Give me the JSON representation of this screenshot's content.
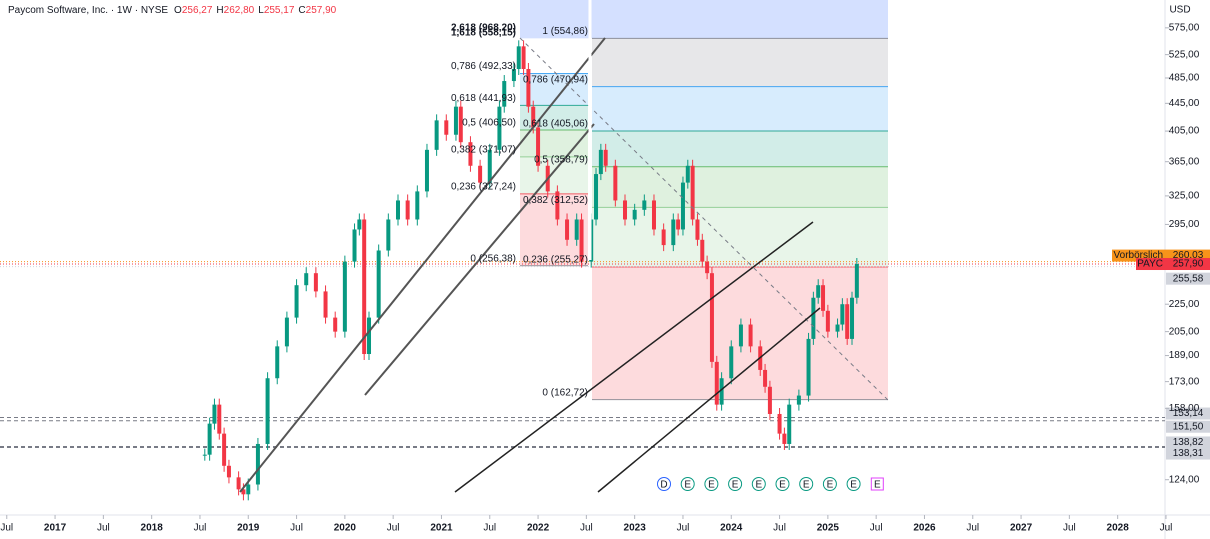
{
  "chart_data": {
    "type": "candlestick",
    "log_scale": true,
    "header": {
      "title": "Paycom Software, Inc. · 1W · NYSE",
      "ohlc": [
        {
          "key": "O",
          "value": 256.27,
          "value_label": "256,27"
        },
        {
          "key": "H",
          "value": 262.8,
          "value_label": "262,80"
        },
        {
          "key": "L",
          "value": 255.17,
          "value_label": "255,17"
        },
        {
          "key": "C",
          "value": 257.9,
          "value_label": "257,90"
        }
      ]
    },
    "currency": "USD",
    "up_color": "#089981",
    "down_color": "#f23645",
    "ylim": [
      110,
      632
    ],
    "yticks": [
      {
        "value": 575,
        "label": "575,00"
      },
      {
        "value": 525,
        "label": "525,00"
      },
      {
        "value": 485,
        "label": "485,00"
      },
      {
        "value": 445,
        "label": "445,00"
      },
      {
        "value": 405,
        "label": "405,00"
      },
      {
        "value": 365,
        "label": "365,00"
      },
      {
        "value": 325,
        "label": "325,00"
      },
      {
        "value": 295,
        "label": "295,00"
      },
      {
        "value": 225,
        "label": "225,00"
      },
      {
        "value": 205,
        "label": "205,00"
      },
      {
        "value": 189,
        "label": "189,00"
      },
      {
        "value": 173,
        "label": "173,00"
      },
      {
        "value": 158,
        "label": "158,00"
      },
      {
        "value": 124,
        "label": "124,00"
      }
    ],
    "xlim": [
      2016.43,
      2028.49
    ],
    "xticks": [
      {
        "value": 2016.5,
        "label": "Jul"
      },
      2017,
      {
        "value": 2017.5,
        "label": "Jul"
      },
      2018,
      {
        "value": 2018.5,
        "label": "Jul"
      },
      2019,
      {
        "value": 2019.5,
        "label": "Jul"
      },
      2020,
      {
        "value": 2020.5,
        "label": "Jul"
      },
      2021,
      {
        "value": 2021.5,
        "label": "Jul"
      },
      2022,
      {
        "value": 2022.5,
        "label": "Jul"
      },
      2023,
      {
        "value": 2023.5,
        "label": "Jul"
      },
      2024,
      {
        "value": 2024.5,
        "label": "Jul"
      },
      2025,
      {
        "value": 2025.5,
        "label": "Jul"
      },
      2026,
      {
        "value": 2026.5,
        "label": "Jul"
      },
      2027,
      {
        "value": 2027.5,
        "label": "Jul"
      },
      2028,
      {
        "value": 2028.5,
        "label": "Jul"
      }
    ],
    "x": [
      2018.55,
      2018.6,
      2018.65,
      2018.7,
      2018.75,
      2018.8,
      2018.9,
      2018.95,
      2019.0,
      2019.1,
      2019.2,
      2019.3,
      2019.4,
      2019.5,
      2019.6,
      2019.7,
      2019.8,
      2019.9,
      2020.0,
      2020.1,
      2020.15,
      2020.2,
      2020.25,
      2020.35,
      2020.45,
      2020.55,
      2020.65,
      2020.75,
      2020.85,
      2020.95,
      2021.05,
      2021.15,
      2021.2,
      2021.3,
      2021.4,
      2021.5,
      2021.6,
      2021.65,
      2021.75,
      2021.8,
      2021.85,
      2021.9,
      2021.95,
      2022.0,
      2022.1,
      2022.2,
      2022.3,
      2022.4,
      2022.45,
      2022.55,
      2022.6,
      2022.65,
      2022.7,
      2022.8,
      2022.9,
      2023.0,
      2023.1,
      2023.2,
      2023.3,
      2023.4,
      2023.45,
      2023.5,
      2023.55,
      2023.6,
      2023.65,
      2023.7,
      2023.75,
      2023.8,
      2023.85,
      2023.9,
      2024.0,
      2024.1,
      2024.2,
      2024.3,
      2024.35,
      2024.4,
      2024.5,
      2024.55,
      2024.6,
      2024.7,
      2024.8,
      2024.85,
      2024.9,
      2024.95,
      2025.0,
      2025.1,
      2025.15,
      2025.2,
      2025.25,
      2025.3
    ],
    "values": [
      135,
      150,
      160,
      145,
      130,
      125,
      120,
      118,
      122,
      140,
      175,
      195,
      215,
      240,
      250,
      235,
      215,
      205,
      260,
      290,
      300,
      190,
      215,
      270,
      300,
      320,
      300,
      330,
      380,
      420,
      400,
      440,
      390,
      360,
      340,
      380,
      440,
      480,
      500,
      540,
      500,
      440,
      410,
      360,
      330,
      300,
      280,
      300,
      260,
      300,
      350,
      380,
      360,
      320,
      300,
      310,
      320,
      290,
      275,
      300,
      290,
      340,
      360,
      300,
      280,
      260,
      250,
      185,
      160,
      175,
      195,
      210,
      195,
      180,
      170,
      155,
      145,
      140,
      160,
      165,
      200,
      230,
      240,
      220,
      205,
      210,
      225,
      200,
      230,
      257.9
    ],
    "fib_right": {
      "levels": [
        {
          "label": "1 (554,86)",
          "price": 554.86,
          "color": "#787b86"
        },
        {
          "label": "0,786 (470,94)",
          "price": 470.94,
          "color": "#2196f3"
        },
        {
          "label": "0,618 (405,06)",
          "price": 405.06,
          "color": "#089981"
        },
        {
          "label": "0,5 (358,79)",
          "price": 358.79,
          "color": "#4caf50"
        },
        {
          "label": "0,382 (312,52)",
          "price": 312.52,
          "color": "#81c784"
        },
        {
          "label": "0,236 (255,27)",
          "price": 255.27,
          "color": "#f23645"
        },
        {
          "label": "0 (162,72)",
          "price": 162.72,
          "color": "#787b86"
        }
      ]
    },
    "fib_left": {
      "top_labels": [
        "2,618 (968,20)",
        "1,618 (558,15)"
      ],
      "levels": [
        {
          "label": "0,786 (492,33)",
          "price": 492.33,
          "color": "#2196f3"
        },
        {
          "label": "0,618 (441,93)",
          "price": 441.93,
          "color": "#089981"
        },
        {
          "label": "0,5 (406,50)",
          "price": 406.5,
          "color": "#4caf50"
        },
        {
          "label": "0,382 (371,07)",
          "price": 371.07,
          "color": "#81c784"
        },
        {
          "label": "0,236 (327,24)",
          "price": 327.24,
          "color": "#f23645"
        },
        {
          "label": "0 (256,38)",
          "price": 256.38,
          "color": "#787b86"
        }
      ]
    },
    "price_tags": [
      {
        "name": "Vorbörslich",
        "value": 260.03,
        "value_label": "260,03",
        "color": "#f7931a"
      },
      {
        "name": "PAYC",
        "value": 257.9,
        "value_label": "257,90",
        "color": "#f23645"
      },
      {
        "value": 255.58,
        "value_label": "255,58",
        "color": "#d1d4dc"
      },
      {
        "value": 153.14,
        "value_label": "153,14",
        "color": "#d1d4dc"
      },
      {
        "value": 151.5,
        "value_label": "151,50",
        "color": "#d1d4dc"
      },
      {
        "value": 138.82,
        "value_label": "138,82",
        "color": "#d1d4dc"
      },
      {
        "value": 138.31,
        "value_label": "138,31",
        "color": "#d1d4dc"
      }
    ],
    "events": [
      "D",
      "E",
      "E",
      "E",
      "E",
      "E",
      "E",
      "E",
      "E",
      "E"
    ]
  }
}
